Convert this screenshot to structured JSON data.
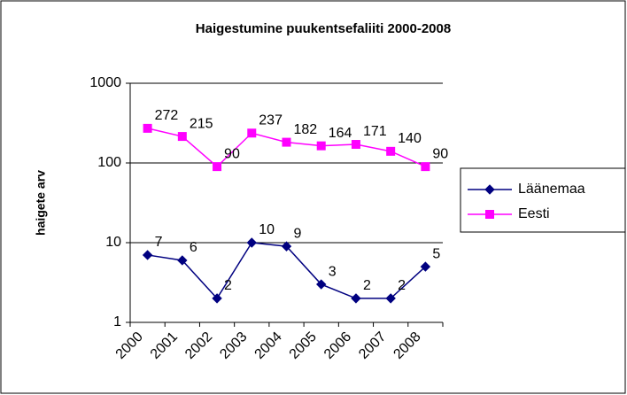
{
  "chart_data": {
    "type": "line",
    "title": "Haigestumine puukentsefaliiti 2000-2008",
    "y_label": "haigete arv",
    "categories": [
      "2000",
      "2001",
      "2002",
      "2003",
      "2004",
      "2005",
      "2006",
      "2007",
      "2008"
    ],
    "series": [
      {
        "name": "Läänemaa",
        "color": "#000080",
        "marker": "diamond",
        "values": [
          7,
          6,
          2,
          10,
          9,
          3,
          2,
          2,
          5
        ]
      },
      {
        "name": "Eesti",
        "color": "#ff00ff",
        "marker": "square",
        "values": [
          272,
          215,
          90,
          237,
          182,
          164,
          171,
          140,
          90
        ]
      }
    ],
    "ylim": [
      1,
      1000
    ],
    "yticks": [
      1,
      10,
      100,
      1000
    ],
    "log_scale": true,
    "grid": true,
    "legend": "right"
  }
}
